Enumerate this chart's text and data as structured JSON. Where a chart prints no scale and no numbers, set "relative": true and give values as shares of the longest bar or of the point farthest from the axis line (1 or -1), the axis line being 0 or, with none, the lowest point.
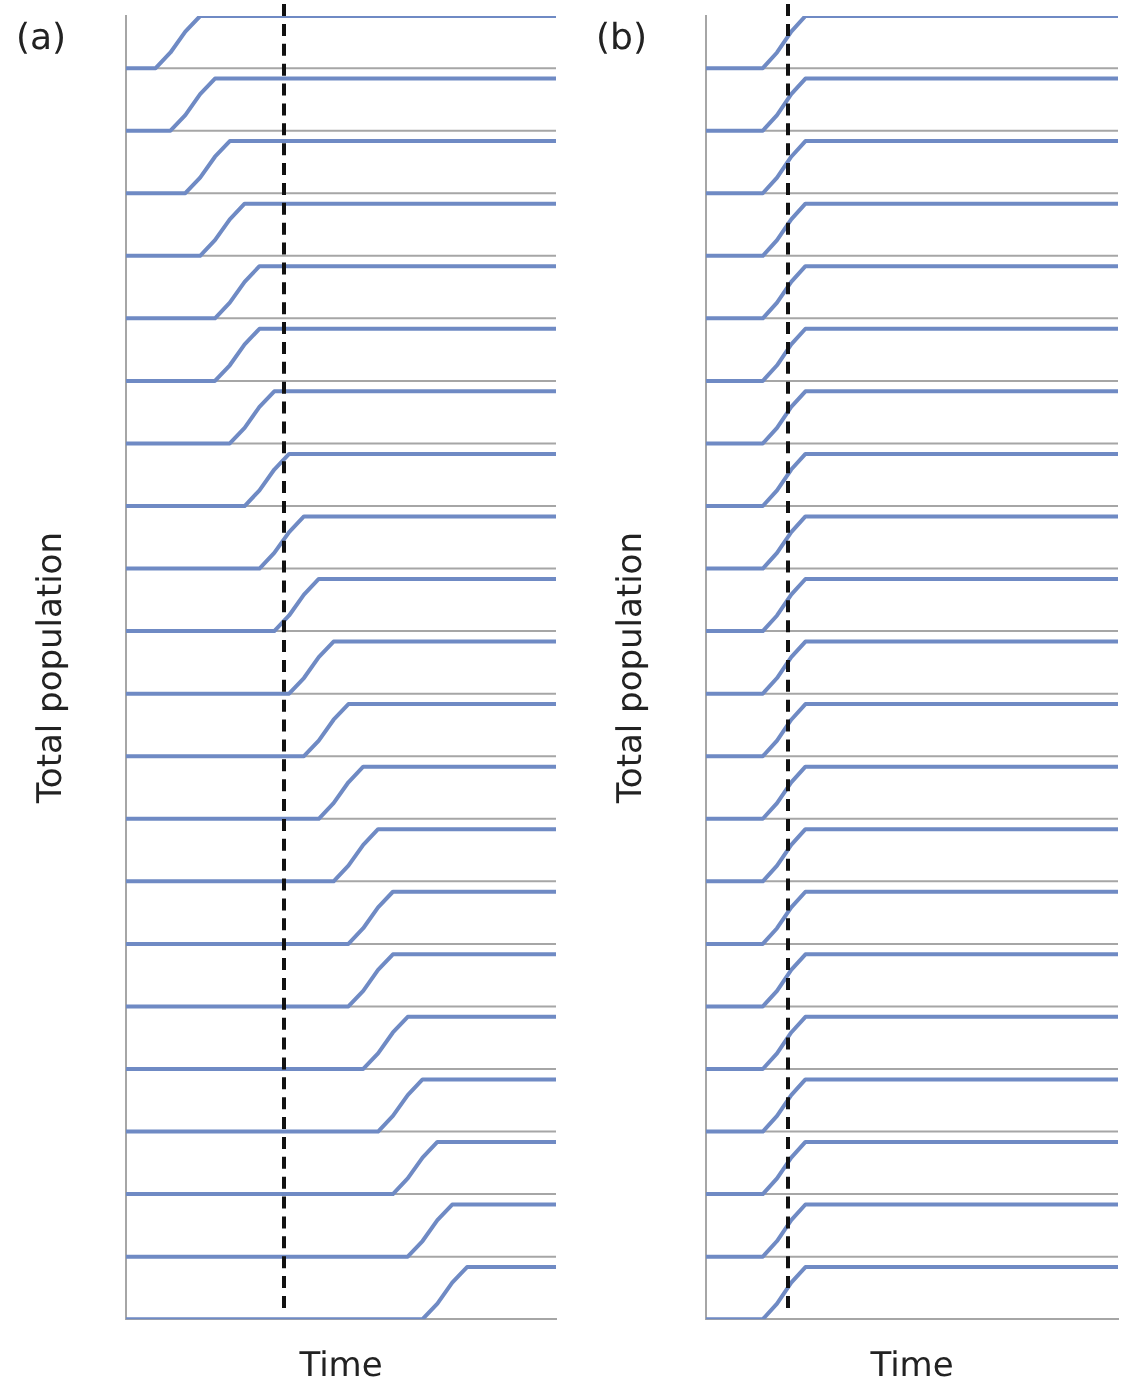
{
  "chart_data": [
    {
      "type": "line",
      "relative": true,
      "title": "(a)",
      "xlabel": "Time",
      "ylabel": "Total population",
      "categories": [
        null,
        null,
        null,
        null,
        null,
        null,
        null,
        null,
        null,
        null,
        null,
        null,
        null,
        null,
        null,
        null,
        null,
        null,
        null,
        null,
        null,
        null,
        null,
        null,
        null,
        null,
        null,
        null,
        null,
        null
      ],
      "ref_lines": [
        {
          "axis": "y",
          "value": 0.96,
          "color": "#a6a6a6"
        },
        {
          "axis": "y",
          "value": 0.912,
          "color": "#a6a6a6"
        },
        {
          "axis": "y",
          "value": 0.864,
          "color": "#a6a6a6"
        },
        {
          "axis": "y",
          "value": 0.816,
          "color": "#a6a6a6"
        },
        {
          "axis": "y",
          "value": 0.768,
          "color": "#a6a6a6"
        },
        {
          "axis": "y",
          "value": 0.72,
          "color": "#a6a6a6"
        },
        {
          "axis": "y",
          "value": 0.672,
          "color": "#a6a6a6"
        },
        {
          "axis": "y",
          "value": 0.624,
          "color": "#a6a6a6"
        },
        {
          "axis": "y",
          "value": 0.576,
          "color": "#a6a6a6"
        },
        {
          "axis": "y",
          "value": 0.528,
          "color": "#a6a6a6"
        },
        {
          "axis": "y",
          "value": 0.48,
          "color": "#a6a6a6"
        },
        {
          "axis": "y",
          "value": 0.432,
          "color": "#a6a6a6"
        },
        {
          "axis": "y",
          "value": 0.384,
          "color": "#a6a6a6"
        },
        {
          "axis": "y",
          "value": 0.336,
          "color": "#a6a6a6"
        },
        {
          "axis": "y",
          "value": 0.288,
          "color": "#a6a6a6"
        },
        {
          "axis": "y",
          "value": 0.24,
          "color": "#a6a6a6"
        },
        {
          "axis": "y",
          "value": 0.192,
          "color": "#a6a6a6"
        },
        {
          "axis": "y",
          "value": 0.144,
          "color": "#a6a6a6"
        },
        {
          "axis": "y",
          "value": 0.096,
          "color": "#a6a6a6"
        },
        {
          "axis": "y",
          "value": 0.048,
          "color": "#a6a6a6"
        }
      ],
      "series": [
        {
          "color": "#6f8ac4",
          "values": [
            0.96,
            0.96,
            0.96,
            0.972,
            0.988,
            1,
            1,
            1,
            1,
            1,
            1,
            1,
            1,
            1,
            1,
            1,
            1,
            1,
            1,
            1,
            1,
            1,
            1,
            1,
            1,
            1,
            1,
            1,
            1,
            1
          ]
        },
        {
          "color": "#6f8ac4",
          "values": [
            0.912,
            0.912,
            0.912,
            0.912,
            0.924,
            0.94,
            0.952,
            0.952,
            0.952,
            0.952,
            0.952,
            0.952,
            0.952,
            0.952,
            0.952,
            0.952,
            0.952,
            0.952,
            0.952,
            0.952,
            0.952,
            0.952,
            0.952,
            0.952,
            0.952,
            0.952,
            0.952,
            0.952,
            0.952,
            0.952
          ]
        },
        {
          "color": "#6f8ac4",
          "values": [
            0.864,
            0.864,
            0.864,
            0.864,
            0.864,
            0.876,
            0.892,
            0.904,
            0.904,
            0.904,
            0.904,
            0.904,
            0.904,
            0.904,
            0.904,
            0.904,
            0.904,
            0.904,
            0.904,
            0.904,
            0.904,
            0.904,
            0.904,
            0.904,
            0.904,
            0.904,
            0.904,
            0.904,
            0.904,
            0.904
          ]
        },
        {
          "color": "#6f8ac4",
          "values": [
            0.816,
            0.816,
            0.816,
            0.816,
            0.816,
            0.816,
            0.828,
            0.844,
            0.856,
            0.856,
            0.856,
            0.856,
            0.856,
            0.856,
            0.856,
            0.856,
            0.856,
            0.856,
            0.856,
            0.856,
            0.856,
            0.856,
            0.856,
            0.856,
            0.856,
            0.856,
            0.856,
            0.856,
            0.856,
            0.856
          ]
        },
        {
          "color": "#6f8ac4",
          "values": [
            0.768,
            0.768,
            0.768,
            0.768,
            0.768,
            0.768,
            0.768,
            0.78,
            0.796,
            0.808,
            0.808,
            0.808,
            0.808,
            0.808,
            0.808,
            0.808,
            0.808,
            0.808,
            0.808,
            0.808,
            0.808,
            0.808,
            0.808,
            0.808,
            0.808,
            0.808,
            0.808,
            0.808,
            0.808,
            0.808
          ]
        },
        {
          "color": "#6f8ac4",
          "values": [
            0.72,
            0.72,
            0.72,
            0.72,
            0.72,
            0.72,
            0.72,
            0.732,
            0.748,
            0.76,
            0.76,
            0.76,
            0.76,
            0.76,
            0.76,
            0.76,
            0.76,
            0.76,
            0.76,
            0.76,
            0.76,
            0.76,
            0.76,
            0.76,
            0.76,
            0.76,
            0.76,
            0.76,
            0.76,
            0.76
          ]
        },
        {
          "color": "#6f8ac4",
          "values": [
            0.672,
            0.672,
            0.672,
            0.672,
            0.672,
            0.672,
            0.672,
            0.672,
            0.684,
            0.7,
            0.712,
            0.712,
            0.712,
            0.712,
            0.712,
            0.712,
            0.712,
            0.712,
            0.712,
            0.712,
            0.712,
            0.712,
            0.712,
            0.712,
            0.712,
            0.712,
            0.712,
            0.712,
            0.712,
            0.712
          ]
        },
        {
          "color": "#6f8ac4",
          "values": [
            0.624,
            0.624,
            0.624,
            0.624,
            0.624,
            0.624,
            0.624,
            0.624,
            0.624,
            0.636,
            0.652,
            0.664,
            0.664,
            0.664,
            0.664,
            0.664,
            0.664,
            0.664,
            0.664,
            0.664,
            0.664,
            0.664,
            0.664,
            0.664,
            0.664,
            0.664,
            0.664,
            0.664,
            0.664,
            0.664
          ]
        },
        {
          "color": "#6f8ac4",
          "values": [
            0.576,
            0.576,
            0.576,
            0.576,
            0.576,
            0.576,
            0.576,
            0.576,
            0.576,
            0.576,
            0.588,
            0.604,
            0.616,
            0.616,
            0.616,
            0.616,
            0.616,
            0.616,
            0.616,
            0.616,
            0.616,
            0.616,
            0.616,
            0.616,
            0.616,
            0.616,
            0.616,
            0.616,
            0.616,
            0.616
          ]
        },
        {
          "color": "#6f8ac4",
          "values": [
            0.528,
            0.528,
            0.528,
            0.528,
            0.528,
            0.528,
            0.528,
            0.528,
            0.528,
            0.528,
            0.528,
            0.54,
            0.556,
            0.568,
            0.568,
            0.568,
            0.568,
            0.568,
            0.568,
            0.568,
            0.568,
            0.568,
            0.568,
            0.568,
            0.568,
            0.568,
            0.568,
            0.568,
            0.568,
            0.568
          ]
        },
        {
          "color": "#6f8ac4",
          "values": [
            0.48,
            0.48,
            0.48,
            0.48,
            0.48,
            0.48,
            0.48,
            0.48,
            0.48,
            0.48,
            0.48,
            0.48,
            0.492,
            0.508,
            0.52,
            0.52,
            0.52,
            0.52,
            0.52,
            0.52,
            0.52,
            0.52,
            0.52,
            0.52,
            0.52,
            0.52,
            0.52,
            0.52,
            0.52,
            0.52
          ]
        },
        {
          "color": "#6f8ac4",
          "values": [
            0.432,
            0.432,
            0.432,
            0.432,
            0.432,
            0.432,
            0.432,
            0.432,
            0.432,
            0.432,
            0.432,
            0.432,
            0.432,
            0.444,
            0.46,
            0.472,
            0.472,
            0.472,
            0.472,
            0.472,
            0.472,
            0.472,
            0.472,
            0.472,
            0.472,
            0.472,
            0.472,
            0.472,
            0.472,
            0.472
          ]
        },
        {
          "color": "#6f8ac4",
          "values": [
            0.384,
            0.384,
            0.384,
            0.384,
            0.384,
            0.384,
            0.384,
            0.384,
            0.384,
            0.384,
            0.384,
            0.384,
            0.384,
            0.384,
            0.396,
            0.412,
            0.424,
            0.424,
            0.424,
            0.424,
            0.424,
            0.424,
            0.424,
            0.424,
            0.424,
            0.424,
            0.424,
            0.424,
            0.424,
            0.424
          ]
        },
        {
          "color": "#6f8ac4",
          "values": [
            0.336,
            0.336,
            0.336,
            0.336,
            0.336,
            0.336,
            0.336,
            0.336,
            0.336,
            0.336,
            0.336,
            0.336,
            0.336,
            0.336,
            0.336,
            0.348,
            0.364,
            0.376,
            0.376,
            0.376,
            0.376,
            0.376,
            0.376,
            0.376,
            0.376,
            0.376,
            0.376,
            0.376,
            0.376,
            0.376
          ]
        },
        {
          "color": "#6f8ac4",
          "values": [
            0.288,
            0.288,
            0.288,
            0.288,
            0.288,
            0.288,
            0.288,
            0.288,
            0.288,
            0.288,
            0.288,
            0.288,
            0.288,
            0.288,
            0.288,
            0.288,
            0.3,
            0.316,
            0.328,
            0.328,
            0.328,
            0.328,
            0.328,
            0.328,
            0.328,
            0.328,
            0.328,
            0.328,
            0.328,
            0.328
          ]
        },
        {
          "color": "#6f8ac4",
          "values": [
            0.24,
            0.24,
            0.24,
            0.24,
            0.24,
            0.24,
            0.24,
            0.24,
            0.24,
            0.24,
            0.24,
            0.24,
            0.24,
            0.24,
            0.24,
            0.24,
            0.252,
            0.268,
            0.28,
            0.28,
            0.28,
            0.28,
            0.28,
            0.28,
            0.28,
            0.28,
            0.28,
            0.28,
            0.28,
            0.28
          ]
        },
        {
          "color": "#6f8ac4",
          "values": [
            0.192,
            0.192,
            0.192,
            0.192,
            0.192,
            0.192,
            0.192,
            0.192,
            0.192,
            0.192,
            0.192,
            0.192,
            0.192,
            0.192,
            0.192,
            0.192,
            0.192,
            0.204,
            0.22,
            0.232,
            0.232,
            0.232,
            0.232,
            0.232,
            0.232,
            0.232,
            0.232,
            0.232,
            0.232,
            0.232
          ]
        },
        {
          "color": "#6f8ac4",
          "values": [
            0.144,
            0.144,
            0.144,
            0.144,
            0.144,
            0.144,
            0.144,
            0.144,
            0.144,
            0.144,
            0.144,
            0.144,
            0.144,
            0.144,
            0.144,
            0.144,
            0.144,
            0.144,
            0.156,
            0.172,
            0.184,
            0.184,
            0.184,
            0.184,
            0.184,
            0.184,
            0.184,
            0.184,
            0.184,
            0.184
          ]
        },
        {
          "color": "#6f8ac4",
          "values": [
            0.096,
            0.096,
            0.096,
            0.096,
            0.096,
            0.096,
            0.096,
            0.096,
            0.096,
            0.096,
            0.096,
            0.096,
            0.096,
            0.096,
            0.096,
            0.096,
            0.096,
            0.096,
            0.096,
            0.108,
            0.124,
            0.136,
            0.136,
            0.136,
            0.136,
            0.136,
            0.136,
            0.136,
            0.136,
            0.136
          ]
        },
        {
          "color": "#6f8ac4",
          "values": [
            0.048,
            0.048,
            0.048,
            0.048,
            0.048,
            0.048,
            0.048,
            0.048,
            0.048,
            0.048,
            0.048,
            0.048,
            0.048,
            0.048,
            0.048,
            0.048,
            0.048,
            0.048,
            0.048,
            0.048,
            0.06,
            0.076,
            0.088,
            0.088,
            0.088,
            0.088,
            0.088,
            0.088,
            0.088,
            0.088
          ]
        },
        {
          "color": "#6f8ac4",
          "values": [
            0,
            0,
            0,
            0,
            0,
            0,
            0,
            0,
            0,
            0,
            0,
            0,
            0,
            0,
            0,
            0,
            0,
            0,
            0,
            0,
            0,
            0.012,
            0.028,
            0.04,
            0.04,
            0.04,
            0.04,
            0.04,
            0.04,
            0.04
          ]
        }
      ]
    },
    {
      "type": "line",
      "relative": true,
      "title": "(b)",
      "xlabel": "Time",
      "ylabel": "Total population",
      "categories": [
        null,
        null,
        null,
        null,
        null,
        null,
        null,
        null,
        null,
        null,
        null,
        null,
        null,
        null,
        null,
        null,
        null,
        null,
        null,
        null,
        null,
        null,
        null,
        null,
        null,
        null,
        null,
        null,
        null,
        null
      ],
      "ref_lines": [
        {
          "axis": "y",
          "value": 0.96,
          "color": "#a6a6a6"
        },
        {
          "axis": "y",
          "value": 0.912,
          "color": "#a6a6a6"
        },
        {
          "axis": "y",
          "value": 0.864,
          "color": "#a6a6a6"
        },
        {
          "axis": "y",
          "value": 0.816,
          "color": "#a6a6a6"
        },
        {
          "axis": "y",
          "value": 0.768,
          "color": "#a6a6a6"
        },
        {
          "axis": "y",
          "value": 0.72,
          "color": "#a6a6a6"
        },
        {
          "axis": "y",
          "value": 0.672,
          "color": "#a6a6a6"
        },
        {
          "axis": "y",
          "value": 0.624,
          "color": "#a6a6a6"
        },
        {
          "axis": "y",
          "value": 0.576,
          "color": "#a6a6a6"
        },
        {
          "axis": "y",
          "value": 0.528,
          "color": "#a6a6a6"
        },
        {
          "axis": "y",
          "value": 0.48,
          "color": "#a6a6a6"
        },
        {
          "axis": "y",
          "value": 0.432,
          "color": "#a6a6a6"
        },
        {
          "axis": "y",
          "value": 0.384,
          "color": "#a6a6a6"
        },
        {
          "axis": "y",
          "value": 0.336,
          "color": "#a6a6a6"
        },
        {
          "axis": "y",
          "value": 0.288,
          "color": "#a6a6a6"
        },
        {
          "axis": "y",
          "value": 0.24,
          "color": "#a6a6a6"
        },
        {
          "axis": "y",
          "value": 0.192,
          "color": "#a6a6a6"
        },
        {
          "axis": "y",
          "value": 0.144,
          "color": "#a6a6a6"
        },
        {
          "axis": "y",
          "value": 0.096,
          "color": "#a6a6a6"
        },
        {
          "axis": "y",
          "value": 0.048,
          "color": "#a6a6a6"
        }
      ],
      "series": [
        {
          "color": "#6f8ac4",
          "values": [
            0.96,
            0.96,
            0.96,
            0.96,
            0.96,
            0.972,
            0.988,
            1,
            1,
            1,
            1,
            1,
            1,
            1,
            1,
            1,
            1,
            1,
            1,
            1,
            1,
            1,
            1,
            1,
            1,
            1,
            1,
            1,
            1,
            1
          ]
        },
        {
          "color": "#6f8ac4",
          "values": [
            0.912,
            0.912,
            0.912,
            0.912,
            0.912,
            0.924,
            0.94,
            0.952,
            0.952,
            0.952,
            0.952,
            0.952,
            0.952,
            0.952,
            0.952,
            0.952,
            0.952,
            0.952,
            0.952,
            0.952,
            0.952,
            0.952,
            0.952,
            0.952,
            0.952,
            0.952,
            0.952,
            0.952,
            0.952,
            0.952
          ]
        },
        {
          "color": "#6f8ac4",
          "values": [
            0.864,
            0.864,
            0.864,
            0.864,
            0.864,
            0.876,
            0.892,
            0.904,
            0.904,
            0.904,
            0.904,
            0.904,
            0.904,
            0.904,
            0.904,
            0.904,
            0.904,
            0.904,
            0.904,
            0.904,
            0.904,
            0.904,
            0.904,
            0.904,
            0.904,
            0.904,
            0.904,
            0.904,
            0.904,
            0.904
          ]
        },
        {
          "color": "#6f8ac4",
          "values": [
            0.816,
            0.816,
            0.816,
            0.816,
            0.816,
            0.828,
            0.844,
            0.856,
            0.856,
            0.856,
            0.856,
            0.856,
            0.856,
            0.856,
            0.856,
            0.856,
            0.856,
            0.856,
            0.856,
            0.856,
            0.856,
            0.856,
            0.856,
            0.856,
            0.856,
            0.856,
            0.856,
            0.856,
            0.856,
            0.856
          ]
        },
        {
          "color": "#6f8ac4",
          "values": [
            0.768,
            0.768,
            0.768,
            0.768,
            0.768,
            0.78,
            0.796,
            0.808,
            0.808,
            0.808,
            0.808,
            0.808,
            0.808,
            0.808,
            0.808,
            0.808,
            0.808,
            0.808,
            0.808,
            0.808,
            0.808,
            0.808,
            0.808,
            0.808,
            0.808,
            0.808,
            0.808,
            0.808,
            0.808,
            0.808
          ]
        },
        {
          "color": "#6f8ac4",
          "values": [
            0.72,
            0.72,
            0.72,
            0.72,
            0.72,
            0.732,
            0.748,
            0.76,
            0.76,
            0.76,
            0.76,
            0.76,
            0.76,
            0.76,
            0.76,
            0.76,
            0.76,
            0.76,
            0.76,
            0.76,
            0.76,
            0.76,
            0.76,
            0.76,
            0.76,
            0.76,
            0.76,
            0.76,
            0.76,
            0.76
          ]
        },
        {
          "color": "#6f8ac4",
          "values": [
            0.672,
            0.672,
            0.672,
            0.672,
            0.672,
            0.684,
            0.7,
            0.712,
            0.712,
            0.712,
            0.712,
            0.712,
            0.712,
            0.712,
            0.712,
            0.712,
            0.712,
            0.712,
            0.712,
            0.712,
            0.712,
            0.712,
            0.712,
            0.712,
            0.712,
            0.712,
            0.712,
            0.712,
            0.712,
            0.712
          ]
        },
        {
          "color": "#6f8ac4",
          "values": [
            0.624,
            0.624,
            0.624,
            0.624,
            0.624,
            0.636,
            0.652,
            0.664,
            0.664,
            0.664,
            0.664,
            0.664,
            0.664,
            0.664,
            0.664,
            0.664,
            0.664,
            0.664,
            0.664,
            0.664,
            0.664,
            0.664,
            0.664,
            0.664,
            0.664,
            0.664,
            0.664,
            0.664,
            0.664,
            0.664
          ]
        },
        {
          "color": "#6f8ac4",
          "values": [
            0.576,
            0.576,
            0.576,
            0.576,
            0.576,
            0.588,
            0.604,
            0.616,
            0.616,
            0.616,
            0.616,
            0.616,
            0.616,
            0.616,
            0.616,
            0.616,
            0.616,
            0.616,
            0.616,
            0.616,
            0.616,
            0.616,
            0.616,
            0.616,
            0.616,
            0.616,
            0.616,
            0.616,
            0.616,
            0.616
          ]
        },
        {
          "color": "#6f8ac4",
          "values": [
            0.528,
            0.528,
            0.528,
            0.528,
            0.528,
            0.54,
            0.556,
            0.568,
            0.568,
            0.568,
            0.568,
            0.568,
            0.568,
            0.568,
            0.568,
            0.568,
            0.568,
            0.568,
            0.568,
            0.568,
            0.568,
            0.568,
            0.568,
            0.568,
            0.568,
            0.568,
            0.568,
            0.568,
            0.568,
            0.568
          ]
        },
        {
          "color": "#6f8ac4",
          "values": [
            0.48,
            0.48,
            0.48,
            0.48,
            0.48,
            0.492,
            0.508,
            0.52,
            0.52,
            0.52,
            0.52,
            0.52,
            0.52,
            0.52,
            0.52,
            0.52,
            0.52,
            0.52,
            0.52,
            0.52,
            0.52,
            0.52,
            0.52,
            0.52,
            0.52,
            0.52,
            0.52,
            0.52,
            0.52,
            0.52
          ]
        },
        {
          "color": "#6f8ac4",
          "values": [
            0.432,
            0.432,
            0.432,
            0.432,
            0.432,
            0.444,
            0.46,
            0.472,
            0.472,
            0.472,
            0.472,
            0.472,
            0.472,
            0.472,
            0.472,
            0.472,
            0.472,
            0.472,
            0.472,
            0.472,
            0.472,
            0.472,
            0.472,
            0.472,
            0.472,
            0.472,
            0.472,
            0.472,
            0.472,
            0.472
          ]
        },
        {
          "color": "#6f8ac4",
          "values": [
            0.384,
            0.384,
            0.384,
            0.384,
            0.384,
            0.396,
            0.412,
            0.424,
            0.424,
            0.424,
            0.424,
            0.424,
            0.424,
            0.424,
            0.424,
            0.424,
            0.424,
            0.424,
            0.424,
            0.424,
            0.424,
            0.424,
            0.424,
            0.424,
            0.424,
            0.424,
            0.424,
            0.424,
            0.424,
            0.424
          ]
        },
        {
          "color": "#6f8ac4",
          "values": [
            0.336,
            0.336,
            0.336,
            0.336,
            0.336,
            0.348,
            0.364,
            0.376,
            0.376,
            0.376,
            0.376,
            0.376,
            0.376,
            0.376,
            0.376,
            0.376,
            0.376,
            0.376,
            0.376,
            0.376,
            0.376,
            0.376,
            0.376,
            0.376,
            0.376,
            0.376,
            0.376,
            0.376,
            0.376,
            0.376
          ]
        },
        {
          "color": "#6f8ac4",
          "values": [
            0.288,
            0.288,
            0.288,
            0.288,
            0.288,
            0.3,
            0.316,
            0.328,
            0.328,
            0.328,
            0.328,
            0.328,
            0.328,
            0.328,
            0.328,
            0.328,
            0.328,
            0.328,
            0.328,
            0.328,
            0.328,
            0.328,
            0.328,
            0.328,
            0.328,
            0.328,
            0.328,
            0.328,
            0.328,
            0.328
          ]
        },
        {
          "color": "#6f8ac4",
          "values": [
            0.24,
            0.24,
            0.24,
            0.24,
            0.24,
            0.252,
            0.268,
            0.28,
            0.28,
            0.28,
            0.28,
            0.28,
            0.28,
            0.28,
            0.28,
            0.28,
            0.28,
            0.28,
            0.28,
            0.28,
            0.28,
            0.28,
            0.28,
            0.28,
            0.28,
            0.28,
            0.28,
            0.28,
            0.28,
            0.28
          ]
        },
        {
          "color": "#6f8ac4",
          "values": [
            0.192,
            0.192,
            0.192,
            0.192,
            0.192,
            0.204,
            0.22,
            0.232,
            0.232,
            0.232,
            0.232,
            0.232,
            0.232,
            0.232,
            0.232,
            0.232,
            0.232,
            0.232,
            0.232,
            0.232,
            0.232,
            0.232,
            0.232,
            0.232,
            0.232,
            0.232,
            0.232,
            0.232,
            0.232,
            0.232
          ]
        },
        {
          "color": "#6f8ac4",
          "values": [
            0.144,
            0.144,
            0.144,
            0.144,
            0.144,
            0.156,
            0.172,
            0.184,
            0.184,
            0.184,
            0.184,
            0.184,
            0.184,
            0.184,
            0.184,
            0.184,
            0.184,
            0.184,
            0.184,
            0.184,
            0.184,
            0.184,
            0.184,
            0.184,
            0.184,
            0.184,
            0.184,
            0.184,
            0.184,
            0.184
          ]
        },
        {
          "color": "#6f8ac4",
          "values": [
            0.096,
            0.096,
            0.096,
            0.096,
            0.096,
            0.108,
            0.124,
            0.136,
            0.136,
            0.136,
            0.136,
            0.136,
            0.136,
            0.136,
            0.136,
            0.136,
            0.136,
            0.136,
            0.136,
            0.136,
            0.136,
            0.136,
            0.136,
            0.136,
            0.136,
            0.136,
            0.136,
            0.136,
            0.136,
            0.136
          ]
        },
        {
          "color": "#6f8ac4",
          "values": [
            0.048,
            0.048,
            0.048,
            0.048,
            0.048,
            0.06,
            0.076,
            0.088,
            0.088,
            0.088,
            0.088,
            0.088,
            0.088,
            0.088,
            0.088,
            0.088,
            0.088,
            0.088,
            0.088,
            0.088,
            0.088,
            0.088,
            0.088,
            0.088,
            0.088,
            0.088,
            0.088,
            0.088,
            0.088,
            0.088
          ]
        },
        {
          "color": "#6f8ac4",
          "values": [
            0,
            0,
            0,
            0,
            0,
            0.012,
            0.028,
            0.04,
            0.04,
            0.04,
            0.04,
            0.04,
            0.04,
            0.04,
            0.04,
            0.04,
            0.04,
            0.04,
            0.04,
            0.04,
            0.04,
            0.04,
            0.04,
            0.04,
            0.04,
            0.04,
            0.04,
            0.04,
            0.04,
            0.04
          ]
        }
      ]
    }
  ]
}
